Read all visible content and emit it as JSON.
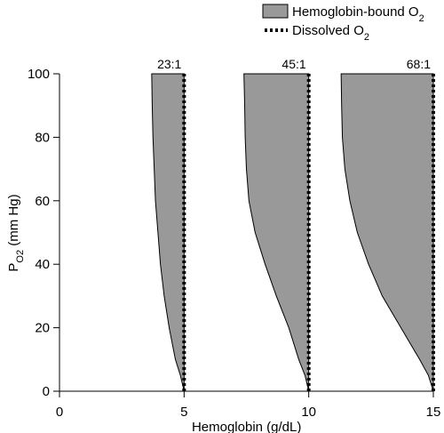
{
  "chart_data": {
    "type": "area",
    "xlabel": "Hemoglobin (g/dL)",
    "ylabel": {
      "main": "P",
      "sub": "O2",
      "rest": " (mm Hg)"
    },
    "xlim": [
      0,
      15
    ],
    "ylim": [
      0,
      100
    ],
    "x_ticks": [
      "0",
      "5",
      "10",
      "15"
    ],
    "y_ticks": [
      "0",
      "20",
      "40",
      "60",
      "80",
      "100"
    ],
    "grid": false,
    "legend": {
      "placement": "top-right",
      "entries": [
        {
          "label": "Hemoglobin-bound O",
          "sub": "2",
          "style": "fill",
          "color": "#999999"
        },
        {
          "label": "Dissolved O",
          "sub": "2",
          "style": "dotted",
          "color": "#000000"
        }
      ]
    },
    "profiles": [
      {
        "hemoglobin": 5,
        "ratio_label": "23:1",
        "width_at_po2": {
          "po2": [
            0,
            5,
            10,
            20,
            30,
            40,
            50,
            60,
            70,
            80,
            90,
            100
          ],
          "hemoglobin_bound": [
            0.0,
            0.15,
            0.35,
            0.6,
            0.8,
            0.95,
            1.05,
            1.15,
            1.2,
            1.25,
            1.28,
            1.3
          ]
        }
      },
      {
        "hemoglobin": 10,
        "ratio_label": "45:1",
        "width_at_po2": {
          "po2": [
            0,
            5,
            10,
            20,
            30,
            40,
            50,
            60,
            70,
            80,
            90,
            100
          ],
          "hemoglobin_bound": [
            0.0,
            0.15,
            0.4,
            0.8,
            1.3,
            1.75,
            2.15,
            2.4,
            2.5,
            2.55,
            2.57,
            2.6
          ]
        }
      },
      {
        "hemoglobin": 15,
        "ratio_label": "68:1",
        "width_at_po2": {
          "po2": [
            0,
            5,
            10,
            20,
            30,
            40,
            50,
            60,
            70,
            80,
            90,
            100
          ],
          "hemoglobin_bound": [
            0.0,
            0.2,
            0.55,
            1.3,
            2.05,
            2.6,
            3.05,
            3.35,
            3.55,
            3.65,
            3.68,
            3.7
          ]
        }
      }
    ]
  }
}
